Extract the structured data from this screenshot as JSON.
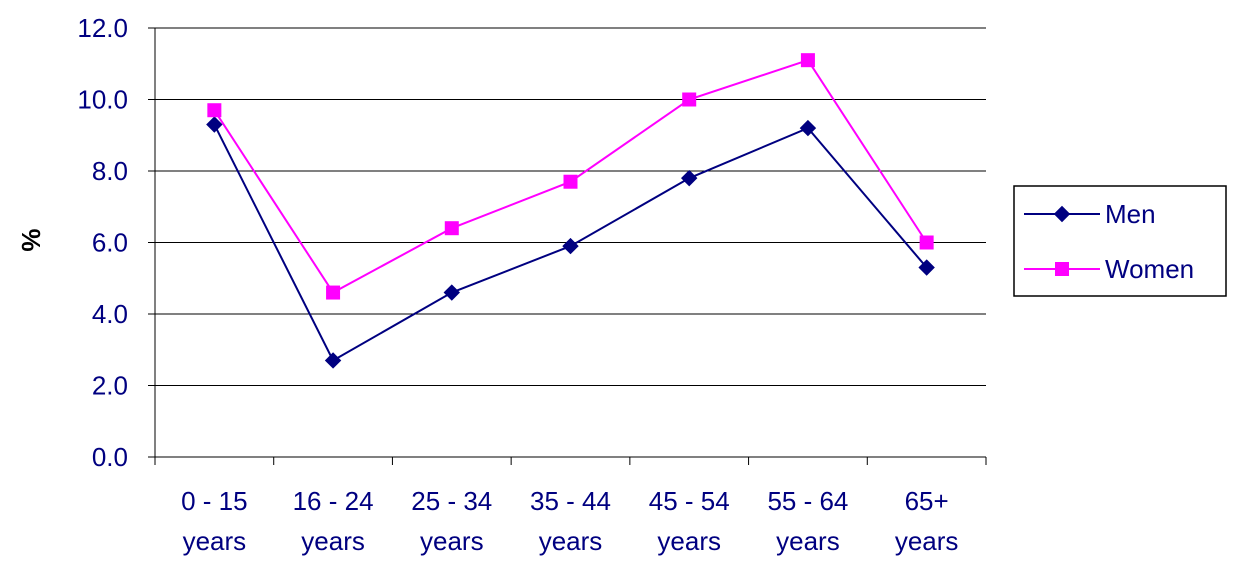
{
  "chart_data": {
    "type": "line",
    "title": "",
    "xlabel": "",
    "ylabel": "%",
    "categories": [
      [
        "0 - 15",
        "years"
      ],
      [
        "16 - 24",
        "years"
      ],
      [
        "25 - 34",
        "years"
      ],
      [
        "35 - 44",
        "years"
      ],
      [
        "45 - 54",
        "years"
      ],
      [
        "55 - 64",
        "years"
      ],
      [
        "65+",
        "years"
      ]
    ],
    "yticks": [
      "0.0",
      "2.0",
      "4.0",
      "6.0",
      "8.0",
      "10.0",
      "12.0"
    ],
    "ylim": [
      0,
      12
    ],
    "grid": true,
    "legend_position": "right",
    "series": [
      {
        "name": "Men",
        "color": "#000080",
        "marker": "diamond",
        "values": [
          9.3,
          2.7,
          4.6,
          5.9,
          7.8,
          9.2,
          5.3
        ]
      },
      {
        "name": "Women",
        "color": "#FF00FF",
        "marker": "square",
        "values": [
          9.7,
          4.6,
          6.4,
          7.7,
          10.0,
          11.1,
          6.0
        ]
      }
    ]
  }
}
